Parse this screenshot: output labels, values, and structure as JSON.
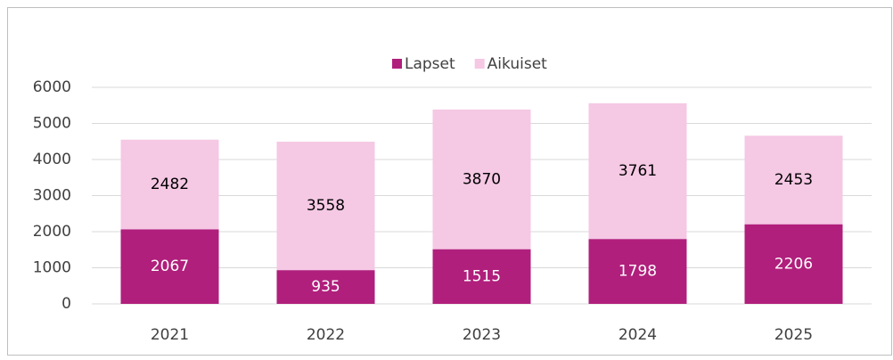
{
  "chart_data": {
    "type": "stacked_bar",
    "categories": [
      "2021",
      "2022",
      "2023",
      "2024",
      "2025"
    ],
    "series": [
      {
        "name": "Lapset",
        "color": "#b01f7c",
        "values": [
          2067,
          935,
          1515,
          1798,
          2206
        ]
      },
      {
        "name": "Aikuiset",
        "color": "#f5c8e4",
        "values": [
          2482,
          3558,
          3870,
          3761,
          2453
        ]
      }
    ],
    "ylim": [
      0,
      6000
    ],
    "yticks": [
      0,
      1000,
      2000,
      3000,
      4000,
      5000,
      6000
    ],
    "grid": true,
    "legend": "top"
  }
}
